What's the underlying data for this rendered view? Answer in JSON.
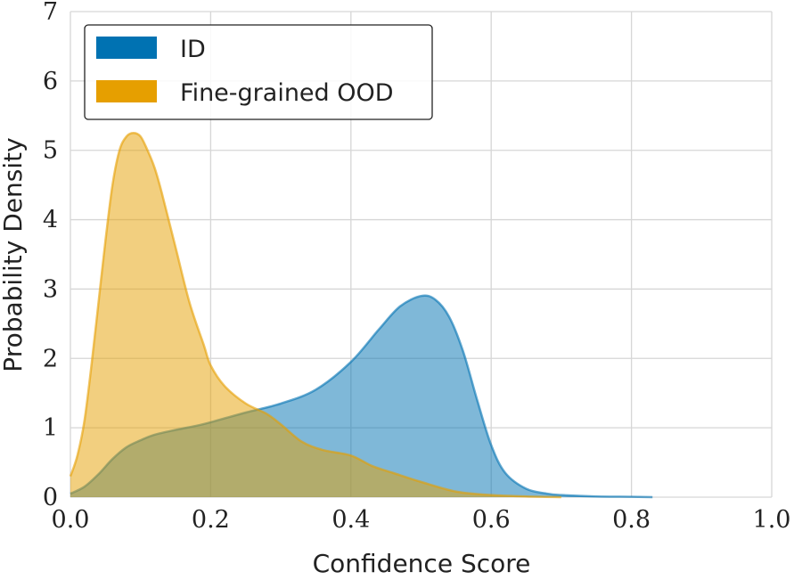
{
  "chart_data": {
    "type": "area",
    "title": "",
    "xlabel": "Confidence Score",
    "ylabel": "Probability Density",
    "xlim": [
      0.0,
      1.0
    ],
    "ylim": [
      0,
      7
    ],
    "xticks": [
      "0.0",
      "0.2",
      "0.4",
      "0.6",
      "0.8",
      "1.0"
    ],
    "yticks": [
      "0",
      "1",
      "2",
      "3",
      "4",
      "5",
      "6",
      "7"
    ],
    "grid": true,
    "legend_position": "top-left",
    "series": [
      {
        "name": "ID",
        "color": "#0072B2",
        "x": [
          0.0,
          0.02,
          0.04,
          0.06,
          0.08,
          0.1,
          0.12,
          0.15,
          0.18,
          0.2,
          0.25,
          0.3,
          0.35,
          0.4,
          0.44,
          0.47,
          0.5,
          0.52,
          0.54,
          0.56,
          0.58,
          0.6,
          0.62,
          0.65,
          0.68,
          0.7,
          0.75,
          0.8,
          0.83
        ],
        "y": [
          0.05,
          0.15,
          0.33,
          0.55,
          0.72,
          0.82,
          0.9,
          0.97,
          1.03,
          1.08,
          1.22,
          1.35,
          1.55,
          1.95,
          2.42,
          2.75,
          2.9,
          2.85,
          2.6,
          2.1,
          1.4,
          0.75,
          0.35,
          0.12,
          0.05,
          0.03,
          0.01,
          0.005,
          0.0
        ]
      },
      {
        "name": "Fine-grained OOD",
        "color": "#E69F00",
        "x": [
          0.0,
          0.01,
          0.02,
          0.03,
          0.04,
          0.05,
          0.06,
          0.07,
          0.08,
          0.09,
          0.1,
          0.11,
          0.12,
          0.13,
          0.15,
          0.17,
          0.19,
          0.2,
          0.22,
          0.25,
          0.28,
          0.3,
          0.33,
          0.36,
          0.4,
          0.43,
          0.46,
          0.5,
          0.55,
          0.6,
          0.65,
          0.7
        ],
        "y": [
          0.3,
          0.6,
          1.1,
          1.9,
          2.8,
          3.7,
          4.5,
          5.0,
          5.2,
          5.25,
          5.2,
          5.0,
          4.75,
          4.4,
          3.6,
          2.8,
          2.2,
          1.9,
          1.6,
          1.35,
          1.2,
          1.05,
          0.8,
          0.68,
          0.6,
          0.45,
          0.35,
          0.22,
          0.08,
          0.03,
          0.01,
          0.0
        ]
      }
    ]
  }
}
